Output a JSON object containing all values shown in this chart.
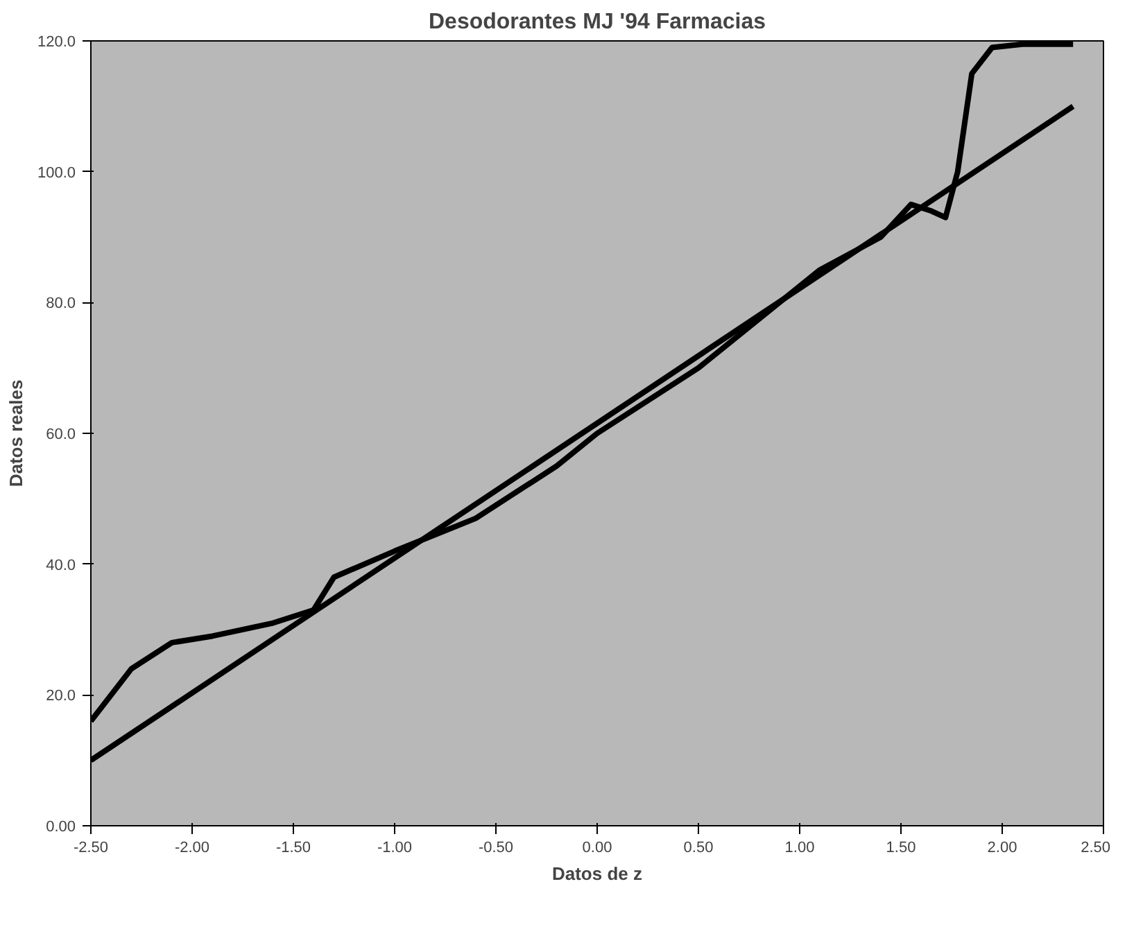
{
  "chart_data": {
    "type": "line",
    "title": "Desodorantes MJ '94 Farmacias",
    "xlabel": "Datos de z",
    "ylabel": "Datos reales",
    "xlim": [
      -2.5,
      2.5
    ],
    "ylim": [
      0,
      120
    ],
    "xticks": [
      {
        "value": -2.5,
        "label": "-2.50"
      },
      {
        "value": -2.0,
        "label": "-2.00"
      },
      {
        "value": -1.5,
        "label": "-1.50"
      },
      {
        "value": -1.0,
        "label": "-1.00"
      },
      {
        "value": -0.5,
        "label": "-0.50"
      },
      {
        "value": 0,
        "label": "0.00"
      },
      {
        "value": 0.5,
        "label": "0.50"
      },
      {
        "value": 1.0,
        "label": "1.00"
      },
      {
        "value": 1.5,
        "label": "1.50"
      },
      {
        "value": 2.0,
        "label": "2.00"
      },
      {
        "value": 2.5,
        "label": "2.50"
      }
    ],
    "yticks": [
      {
        "value": 0,
        "label": "0.00"
      },
      {
        "value": 20,
        "label": "20.0"
      },
      {
        "value": 40,
        "label": "40.0"
      },
      {
        "value": 60,
        "label": "60.0"
      },
      {
        "value": 80,
        "label": "80.0"
      },
      {
        "value": 100,
        "label": "100.0"
      },
      {
        "value": 120,
        "label": "120.0"
      }
    ],
    "grid": false,
    "marker": "none",
    "line_style": "solid",
    "series": [
      {
        "color": "#000000",
        "x": [
          -2.5,
          -2.3,
          -2.1,
          -1.9,
          -1.6,
          -1.4,
          -1.3,
          -1.0,
          -0.6,
          -0.2,
          0.0,
          0.5,
          1.1,
          1.4,
          1.55,
          1.65,
          1.72,
          1.78,
          1.85,
          1.95,
          2.1,
          2.35
        ],
        "values": [
          16,
          24,
          28,
          29,
          31,
          33,
          38,
          42,
          47,
          55,
          60,
          70,
          85,
          90,
          95,
          94,
          93,
          100,
          115,
          119,
          119.5,
          119.5
        ]
      },
      {
        "color": "#000000",
        "x": [
          -2.5,
          2.35
        ],
        "values": [
          10,
          110
        ]
      }
    ]
  }
}
